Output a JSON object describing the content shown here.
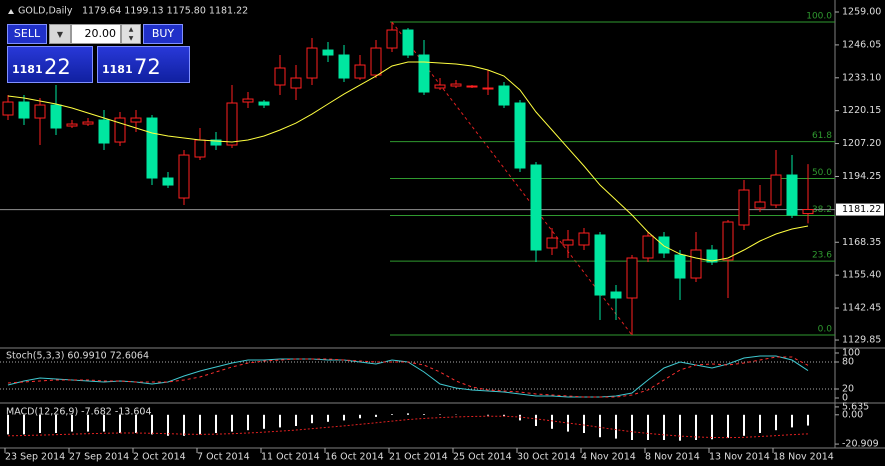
{
  "header": {
    "symbol": "GOLD,Daily",
    "ohlc": "1179.64 1199.13 1175.80 1181.22"
  },
  "trade_panel": {
    "sell": "SELL",
    "buy": "BUY",
    "lot": "20.00",
    "bid_big": "1181",
    "bid_small": "22",
    "ask_big": "1181",
    "ask_small": "72"
  },
  "chart_data": [
    {
      "type": "candlestick",
      "categories": [
        "23 Sep 2014",
        null,
        null,
        null,
        "27 Sep 2014",
        null,
        null,
        null,
        "2 Oct 2014",
        null,
        null,
        null,
        "7 Oct 2014",
        null,
        null,
        null,
        "11 Oct 2014",
        null,
        null,
        null,
        "16 Oct 2014",
        null,
        null,
        null,
        "21 Oct 2014",
        null,
        null,
        null,
        "25 Oct 2014",
        null,
        null,
        null,
        "30 Oct 2014",
        null,
        null,
        null,
        "4 Nov 2014",
        null,
        null,
        null,
        "8 Nov 2014",
        null,
        null,
        null,
        "13 Nov 2014",
        null,
        null,
        null,
        "18 Nov 2014",
        null,
        null
      ],
      "open": [
        1218.45,
        1223.56,
        1217.26,
        1222.38,
        1214.11,
        1214.9,
        1216.48,
        1207.81,
        1215.69,
        1217.26,
        1193.64,
        1185.77,
        1201.91,
        1208.6,
        1206.63,
        1223.56,
        1223.56,
        1230.26,
        1229.08,
        1233.01,
        1244.03,
        1242.07,
        1233.01,
        1234.19,
        1244.82,
        1251.91,
        1242.07,
        1229.08,
        1229.86,
        1229.47,
        1228.68,
        1229.86,
        1223.17,
        1198.76,
        1166.09,
        1167.27,
        1167.27,
        1171.21,
        1148.76,
        1146.4,
        1162.15,
        1170.42,
        1163.33,
        1154.27,
        1165.3,
        1161.36,
        1175.14,
        1181.83,
        1183.01,
        1194.82,
        1179.64
      ],
      "high": [
        1226.32,
        1226.32,
        1225.14,
        1230.26,
        1216.48,
        1217.26,
        1220.41,
        1219.63,
        1220.41,
        1218.45,
        1196.0,
        1204.67,
        1213.33,
        1211.75,
        1230.26,
        1227.5,
        1224.35,
        1242.07,
        1238.13,
        1248.76,
        1247.19,
        1246.0,
        1242.07,
        1247.97,
        1255.06,
        1252.7,
        1247.97,
        1233.01,
        1232.22,
        1230.26,
        1236.16,
        1231.44,
        1224.35,
        1199.94,
        1173.96,
        1173.17,
        1173.96,
        1172.39,
        1151.52,
        1163.33,
        1172.39,
        1172.39,
        1165.3,
        1172.39,
        1167.27,
        1177.11,
        1192.85,
        1190.88,
        1204.67,
        1202.69,
        1199.13
      ],
      "low": [
        1216.48,
        1214.51,
        1206.63,
        1210.57,
        1213.33,
        1214.11,
        1204.67,
        1206.24,
        1211.75,
        1190.88,
        1189.7,
        1183.01,
        1200.73,
        1204.67,
        1205.45,
        1221.2,
        1221.2,
        1226.32,
        1224.35,
        1230.26,
        1239.31,
        1231.44,
        1232.22,
        1233.01,
        1243.25,
        1240.89,
        1226.32,
        1228.29,
        1229.08,
        1229.08,
        1226.32,
        1221.2,
        1196.0,
        1160.57,
        1163.33,
        1162.15,
        1165.3,
        1137.74,
        1137.74,
        1131.83,
        1160.57,
        1162.15,
        1145.61,
        1152.7,
        1159.39,
        1146.4,
        1173.17,
        1180.26,
        1181.83,
        1177.89,
        1175.8
      ],
      "close": [
        1223.56,
        1217.26,
        1222.38,
        1213.33,
        1214.9,
        1215.69,
        1207.42,
        1217.26,
        1217.26,
        1193.64,
        1190.88,
        1202.69,
        1208.6,
        1206.63,
        1223.17,
        1224.74,
        1222.38,
        1236.95,
        1233.01,
        1244.82,
        1242.07,
        1233.01,
        1238.13,
        1244.82,
        1251.91,
        1242.07,
        1227.5,
        1230.26,
        1230.65,
        1229.86,
        1229.08,
        1222.38,
        1197.58,
        1165.3,
        1170.02,
        1169.24,
        1171.99,
        1147.58,
        1146.4,
        1162.15,
        1170.81,
        1164.12,
        1154.27,
        1165.3,
        1160.57,
        1176.32,
        1188.92,
        1184.19,
        1194.82,
        1179.07,
        1181.22
      ],
      "up_color": "#ff2020",
      "down_color": "#00e6a0",
      "overlay": {
        "color": "#ffff40",
        "values": [
          1225.92,
          1225.14,
          1223.96,
          1222.78,
          1221.2,
          1219.23,
          1217.26,
          1215.29,
          1213.33,
          1211.36,
          1210.18,
          1209.39,
          1208.6,
          1208.21,
          1207.81,
          1208.6,
          1210.18,
          1212.54,
          1215.29,
          1218.84,
          1222.78,
          1226.71,
          1230.26,
          1233.8,
          1237.74,
          1239.31,
          1239.31,
          1238.92,
          1238.52,
          1237.74,
          1236.16,
          1233.8,
          1228.29,
          1219.63,
          1212.54,
          1205.45,
          1198.37,
          1190.88,
          1184.98,
          1179.07,
          1172.39,
          1166.87,
          1163.72,
          1162.15,
          1160.96,
          1162.15,
          1165.3,
          1168.84,
          1171.6,
          1173.56,
          1174.74
        ]
      },
      "fibo": {
        "color": "#2f9a2f",
        "line_color": "#e02020",
        "levels": [
          {
            "label": "100.0",
            "value": 1255.06
          },
          {
            "label": "61.8",
            "value": 1207.99
          },
          {
            "label": "50.0",
            "value": 1193.45
          },
          {
            "label": "38.2",
            "value": 1178.9
          },
          {
            "label": "23.6",
            "value": 1160.91
          },
          {
            "label": "0.0",
            "value": 1131.83
          }
        ]
      },
      "last_price": 1181.22,
      "ylim": [
        1127.11,
        1261.76
      ],
      "yticks": [
        {
          "value": 1259,
          "label": "1259.00"
        },
        1246.05,
        {
          "value": 1233.1,
          "label": "1233.10"
        },
        1220.15,
        {
          "value": 1207.2,
          "label": "1207.20"
        },
        1194.25,
        1168.35,
        {
          "value": 1155.4,
          "label": "1155.40"
        },
        1142.45,
        1129.85
      ],
      "grid": false
    },
    {
      "type": "line",
      "title": "Stoch(5,3,3) 60.9910 72.6064",
      "series": [
        {
          "color": "#40c8d0",
          "dash": false,
          "values": [
            28.9,
            37.8,
            44.4,
            42.2,
            40.0,
            37.8,
            35.6,
            37.8,
            35.6,
            31.1,
            35.6,
            48.9,
            60.0,
            68.9,
            77.8,
            84.4,
            84.4,
            86.7,
            86.7,
            86.7,
            84.4,
            84.4,
            80.0,
            75.6,
            84.4,
            80.0,
            57.8,
            31.1,
            22.2,
            17.8,
            15.6,
            13.3,
            8.9,
            4.4,
            4.4,
            2.2,
            2.2,
            2.2,
            4.4,
            11.1,
            40.0,
            66.7,
            80.0,
            73.3,
            66.7,
            75.6,
            88.9,
            93.3,
            93.3,
            84.4,
            60.99
          ]
        },
        {
          "color": "#ff3030",
          "dash": true,
          "values": [
            33.3,
            35.6,
            37.8,
            40.0,
            40.0,
            40.0,
            37.8,
            37.8,
            35.6,
            35.6,
            35.6,
            40.0,
            46.7,
            57.8,
            68.9,
            77.8,
            82.2,
            84.4,
            86.7,
            86.7,
            86.7,
            84.4,
            82.2,
            80.0,
            80.0,
            80.0,
            73.3,
            57.8,
            37.8,
            24.4,
            17.8,
            15.6,
            13.3,
            8.9,
            6.7,
            4.4,
            2.2,
            2.2,
            2.2,
            6.7,
            17.8,
            40.0,
            62.2,
            73.3,
            75.6,
            73.3,
            77.8,
            84.4,
            91.1,
            91.1,
            72.61
          ]
        }
      ],
      "levels": [
        20,
        80
      ],
      "ylim": [
        -6.7,
        108.9
      ],
      "yticks": [
        0,
        20,
        80,
        100
      ]
    },
    {
      "type": "macd",
      "title": "MACD(12,26,9) -7.682 -13.604",
      "color": "#ffffff",
      "values": [
        -14,
        -14,
        -13,
        -13,
        -12,
        -12,
        -12,
        -13,
        -13,
        -14,
        -15,
        -15,
        -14,
        -13,
        -12,
        -11,
        -10,
        -9,
        -8,
        -6,
        -5,
        -4,
        -2.5,
        -1.5,
        0.5,
        1,
        0.5,
        0.3,
        0.2,
        0,
        -0.5,
        -1,
        -4,
        -8,
        -10,
        -12,
        -13,
        -16,
        -17,
        -18,
        -18,
        -18,
        -18.5,
        -18,
        -17.5,
        -16.5,
        -15,
        -13,
        -11,
        -9,
        -7.682
      ],
      "signal": {
        "color": "#e02020",
        "values": [
          -15,
          -14.8,
          -14.5,
          -14.2,
          -13.8,
          -13.5,
          -13.2,
          -13,
          -13,
          -13.2,
          -13.5,
          -13.8,
          -14,
          -13.8,
          -13.5,
          -13,
          -12.4,
          -11.7,
          -10.9,
          -9.9,
          -8.9,
          -7.9,
          -6.8,
          -5.7,
          -4.5,
          -3.4,
          -2.6,
          -2,
          -1.5,
          -1.2,
          -1,
          -1,
          -1.6,
          -2.9,
          -4.3,
          -5.9,
          -7.3,
          -9,
          -10.6,
          -12.1,
          -13.3,
          -14.3,
          -15.2,
          -15.8,
          -16.2,
          -16.3,
          -16.1,
          -15.5,
          -14.9,
          -14.2,
          -13.604
        ]
      },
      "ylim": [
        -23,
        7
      ],
      "yticks": [
        5.635,
        {
          "value": 0,
          "label": "0.00"
        },
        -20.909
      ]
    }
  ]
}
